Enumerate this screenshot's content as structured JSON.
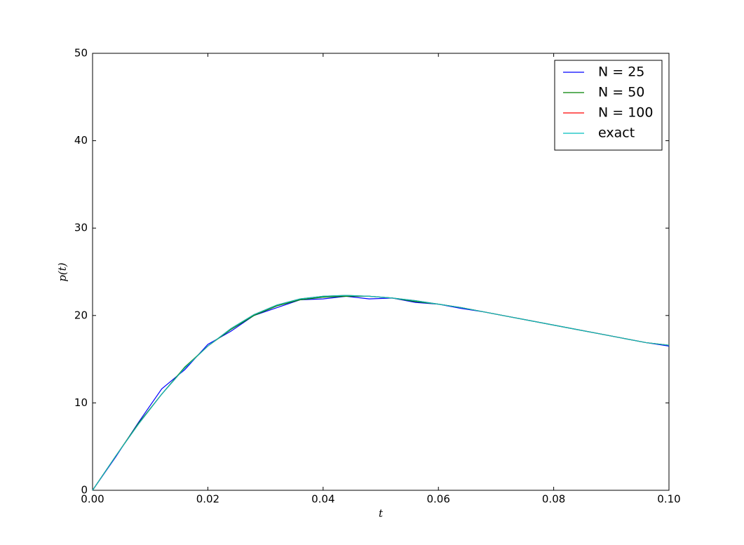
{
  "chart_data": {
    "type": "line",
    "x_label": "t",
    "y_label": "p(t)",
    "x": [
      0,
      0.004,
      0.008,
      0.012,
      0.016,
      0.02,
      0.024,
      0.028,
      0.032,
      0.036,
      0.04,
      0.044,
      0.048,
      0.052,
      0.056,
      0.06,
      0.064,
      0.068,
      0.072,
      0.076,
      0.08,
      0.084,
      0.088,
      0.092,
      0.096,
      0.1
    ],
    "series": [
      {
        "name": "N = 25",
        "color": "#0000ff",
        "values": [
          0,
          3.8,
          7.8,
          11.6,
          13.8,
          16.7,
          18.2,
          20.0,
          20.9,
          21.8,
          21.9,
          22.2,
          21.9,
          22.0,
          21.5,
          21.3,
          20.8,
          20.4,
          19.9,
          19.4,
          18.9,
          18.4,
          17.9,
          17.4,
          16.9,
          16.5
        ]
      },
      {
        "name": "N = 50",
        "color": "#008000",
        "values": [
          0,
          3.9,
          7.7,
          11.0,
          14.1,
          16.5,
          18.4,
          20.0,
          21.1,
          21.8,
          22.1,
          22.2,
          22.2,
          22.0,
          21.6,
          21.3,
          20.9,
          20.4,
          19.9,
          19.4,
          18.9,
          18.4,
          17.9,
          17.4,
          16.9,
          16.6
        ]
      },
      {
        "name": "N = 100",
        "color": "#ff0000",
        "values": [
          0,
          3.9,
          7.6,
          11.0,
          14.0,
          16.5,
          18.5,
          20.1,
          21.2,
          21.9,
          22.2,
          22.3,
          22.2,
          22.0,
          21.7,
          21.3,
          20.9,
          20.4,
          19.9,
          19.4,
          18.9,
          18.4,
          17.9,
          17.4,
          16.9,
          16.6
        ]
      },
      {
        "name": "exact",
        "color": "#00bfbf",
        "values": [
          0,
          3.9,
          7.6,
          11.0,
          14.0,
          16.5,
          18.5,
          20.1,
          21.2,
          21.9,
          22.2,
          22.3,
          22.2,
          22.0,
          21.7,
          21.3,
          20.9,
          20.4,
          19.9,
          19.4,
          18.9,
          18.4,
          17.9,
          17.4,
          16.9,
          16.6
        ]
      }
    ],
    "xlim": [
      0,
      0.1
    ],
    "xticks": [
      {
        "value": 0,
        "label": "0.00"
      },
      {
        "value": 0.02,
        "label": "0.02"
      },
      {
        "value": 0.04,
        "label": "0.04"
      },
      {
        "value": 0.06,
        "label": "0.06"
      },
      {
        "value": 0.08,
        "label": "0.08"
      },
      {
        "value": 0.1,
        "label": "0.10"
      }
    ],
    "ylim": [
      0,
      50
    ],
    "yticks": [
      0,
      10,
      20,
      30,
      40,
      50
    ],
    "grid": false,
    "legend": "upper right"
  }
}
